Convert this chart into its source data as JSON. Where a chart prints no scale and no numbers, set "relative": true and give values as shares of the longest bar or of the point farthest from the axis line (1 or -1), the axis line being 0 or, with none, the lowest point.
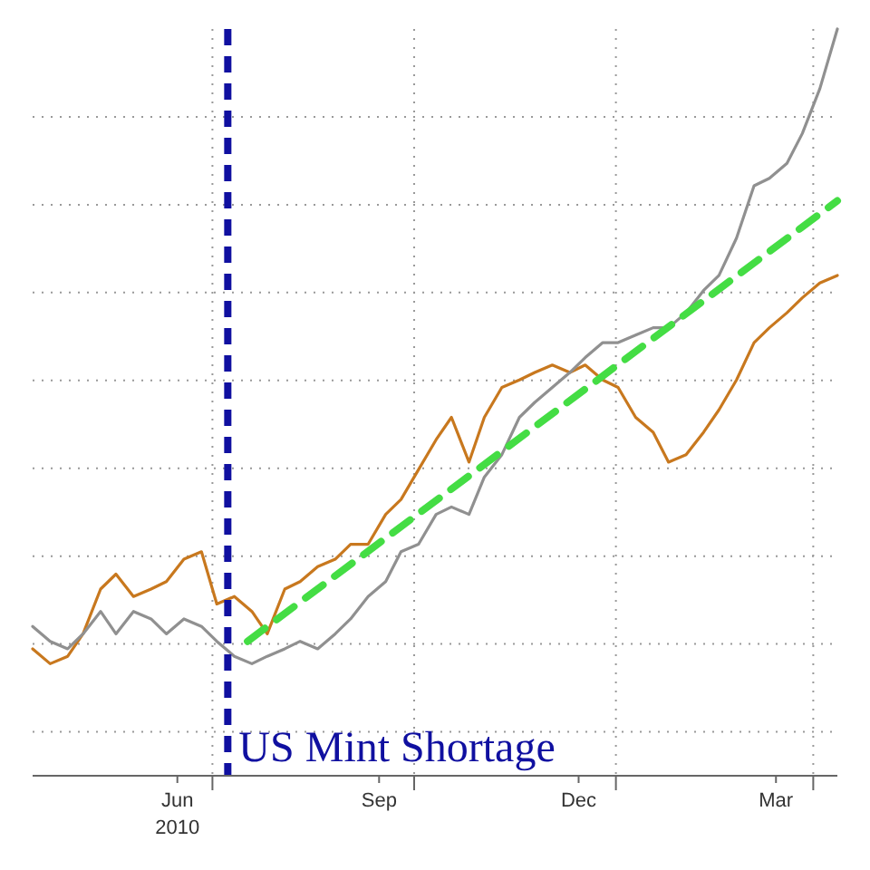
{
  "chart_data": {
    "type": "line",
    "relative": true,
    "grid": true,
    "x": [
      "2010-04-10",
      "2010-04-18",
      "2010-04-26",
      "2010-05-03",
      "2010-05-11",
      "2010-05-18",
      "2010-05-26",
      "2010-06-03",
      "2010-06-10",
      "2010-06-18",
      "2010-06-26",
      "2010-07-03",
      "2010-07-11",
      "2010-07-19",
      "2010-07-26",
      "2010-08-03",
      "2010-08-10",
      "2010-08-18",
      "2010-08-26",
      "2010-09-02",
      "2010-09-10",
      "2010-09-18",
      "2010-09-25",
      "2010-10-03",
      "2010-10-11",
      "2010-10-18",
      "2010-10-26",
      "2010-11-02",
      "2010-11-10",
      "2010-11-18",
      "2010-11-25",
      "2010-12-03",
      "2010-12-11",
      "2010-12-18",
      "2010-12-26",
      "2011-01-02",
      "2011-01-10",
      "2011-01-18",
      "2011-01-25",
      "2011-02-02",
      "2011-02-10",
      "2011-02-17",
      "2011-02-25",
      "2011-03-05",
      "2011-03-12",
      "2011-03-20",
      "2011-03-27",
      "2011-04-04",
      "2011-04-12"
    ],
    "xlim": [
      "2010-04-10",
      "2011-04-12"
    ],
    "xticks": [
      {
        "value": "2010-06-15",
        "label": "Jun\n2010"
      },
      {
        "value": "2010-07-01",
        "label": null
      },
      {
        "value": "2010-09-15",
        "label": "Sep"
      },
      {
        "value": "2010-10-01",
        "label": null
      },
      {
        "value": "2010-12-15",
        "label": "Dec"
      },
      {
        "value": "2011-01-01",
        "label": null
      },
      {
        "value": "2011-03-15",
        "label": "Mar"
      },
      {
        "value": "2011-04-01",
        "label": null
      }
    ],
    "series": [
      {
        "color": "#c8781e",
        "values": [
          0.17,
          0.15,
          0.16,
          0.19,
          0.25,
          0.27,
          0.24,
          0.25,
          0.26,
          0.29,
          0.3,
          0.23,
          0.24,
          0.22,
          0.19,
          0.25,
          0.26,
          0.28,
          0.29,
          0.31,
          0.31,
          0.35,
          0.37,
          0.41,
          0.45,
          0.48,
          0.42,
          0.48,
          0.52,
          0.53,
          0.54,
          0.55,
          0.54,
          0.55,
          0.53,
          0.52,
          0.48,
          0.46,
          0.42,
          0.43,
          0.46,
          0.49,
          0.53,
          0.58,
          0.6,
          0.62,
          0.64,
          0.66,
          0.67
        ]
      },
      {
        "color": "#909090",
        "values": [
          0.2,
          0.18,
          0.17,
          0.19,
          0.22,
          0.19,
          0.22,
          0.21,
          0.19,
          0.21,
          0.2,
          0.18,
          0.16,
          0.15,
          0.16,
          0.17,
          0.18,
          0.17,
          0.19,
          0.21,
          0.24,
          0.26,
          0.3,
          0.31,
          0.35,
          0.36,
          0.35,
          0.4,
          0.43,
          0.48,
          0.5,
          0.52,
          0.54,
          0.56,
          0.58,
          0.58,
          0.59,
          0.6,
          0.6,
          0.62,
          0.65,
          0.67,
          0.72,
          0.79,
          0.8,
          0.82,
          0.86,
          0.92,
          1
        ]
      },
      {
        "type": "line",
        "color": "#44dd44",
        "line_style": "dashed",
        "x": [
          "2010-07-17",
          "2011-04-12"
        ],
        "values": [
          0.18,
          0.77
        ]
      }
    ],
    "ref_lines": [
      {
        "axis": "x",
        "value": "2010-07-08",
        "label": "US Mint Shortage",
        "color": "#1010a0",
        "line_style": "dashed"
      }
    ]
  }
}
